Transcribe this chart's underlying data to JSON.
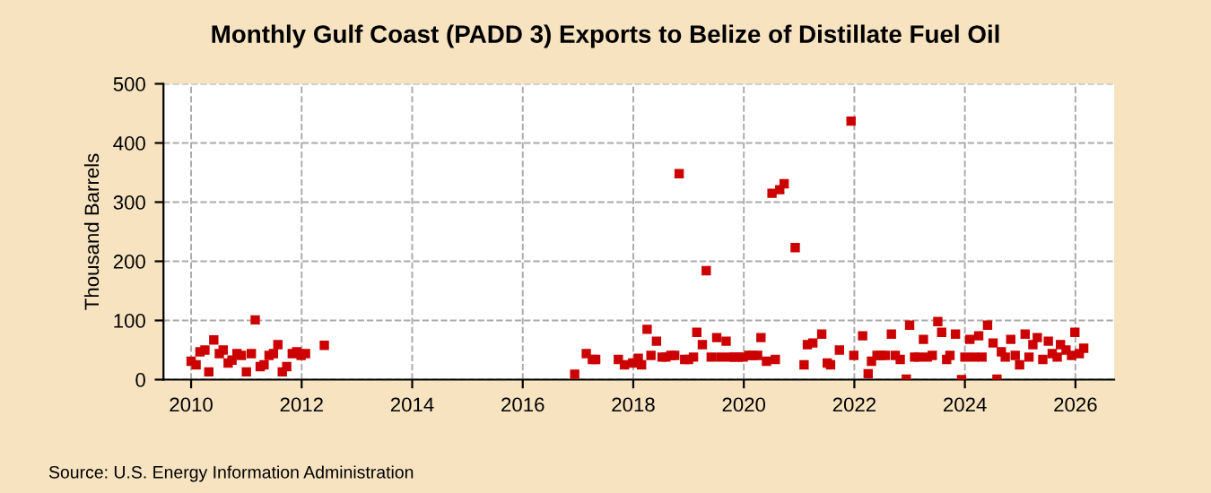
{
  "chart_data": {
    "type": "scatter",
    "title": "Monthly Gulf Coast (PADD 3) Exports to Belize of Distillate Fuel Oil",
    "ylabel": "Thousand Barrels",
    "annotations": [
      "Source: U.S. Energy Information Administration"
    ],
    "x": [
      2010.0,
      2010.09,
      2010.16,
      2010.25,
      2010.32,
      2010.41,
      2010.51,
      2010.58,
      2010.67,
      2010.74,
      2010.83,
      2010.91,
      2011.0,
      2011.09,
      2011.16,
      2011.25,
      2011.32,
      2011.41,
      2011.49,
      2011.57,
      2011.65,
      2011.73,
      2011.83,
      2011.91,
      2011.99,
      2012.07,
      2012.41,
      2016.94,
      2017.15,
      2017.26,
      2017.32,
      2017.73,
      2017.84,
      2017.99,
      2018.09,
      2018.15,
      2018.25,
      2018.32,
      2018.42,
      2018.52,
      2018.59,
      2018.68,
      2018.75,
      2018.83,
      2018.93,
      2019.0,
      2019.09,
      2019.15,
      2019.25,
      2019.32,
      2019.41,
      2019.51,
      2019.58,
      2019.68,
      2019.74,
      2019.83,
      2019.9,
      2019.99,
      2020.09,
      2020.16,
      2020.25,
      2020.31,
      2020.41,
      2020.51,
      2020.57,
      2020.65,
      2020.73,
      2020.93,
      2021.09,
      2021.15,
      2021.25,
      2021.41,
      2021.51,
      2021.57,
      2021.73,
      2021.94,
      2021.99,
      2022.15,
      2022.25,
      2022.31,
      2022.41,
      2022.48,
      2022.56,
      2022.67,
      2022.74,
      2022.83,
      2022.94,
      2023.0,
      2023.09,
      2023.16,
      2023.25,
      2023.32,
      2023.41,
      2023.51,
      2023.58,
      2023.67,
      2023.73,
      2023.83,
      2023.94,
      2024.0,
      2024.09,
      2024.16,
      2024.25,
      2024.31,
      2024.41,
      2024.51,
      2024.58,
      2024.66,
      2024.73,
      2024.83,
      2024.91,
      2024.99,
      2025.09,
      2025.16,
      2025.23,
      2025.31,
      2025.41,
      2025.51,
      2025.58,
      2025.67,
      2025.73,
      2025.83,
      2025.93,
      2025.99,
      2026.07,
      2026.15
    ],
    "series": [
      {
        "color": "#cc0000",
        "values": [
          31,
          25,
          47,
          50,
          13,
          67,
          44,
          50,
          28,
          33,
          44,
          41,
          13,
          44,
          101,
          22,
          25,
          41,
          44,
          59,
          13,
          22,
          44,
          47,
          41,
          44,
          58,
          9,
          44,
          34,
          34,
          34,
          25,
          28,
          36,
          25,
          85,
          41,
          65,
          38,
          38,
          41,
          41,
          348,
          34,
          34,
          38,
          80,
          59,
          184,
          38,
          71,
          38,
          65,
          38,
          38,
          38,
          38,
          41,
          41,
          41,
          71,
          31,
          315,
          34,
          321,
          331,
          223,
          25,
          59,
          62,
          77,
          28,
          25,
          50,
          437,
          41,
          74,
          10,
          31,
          41,
          41,
          41,
          77,
          41,
          34,
          1,
          92,
          38,
          38,
          68,
          38,
          41,
          98,
          80,
          34,
          41,
          77,
          0,
          38,
          68,
          38,
          74,
          38,
          92,
          62,
          1,
          47,
          38,
          68,
          41,
          25,
          77,
          38,
          59,
          71,
          34,
          65,
          44,
          38,
          59,
          50,
          41,
          80,
          44,
          53
        ]
      }
    ],
    "xlim": [
      2009.5,
      2026.7
    ],
    "xticks": [
      2010,
      2012,
      2014,
      2016,
      2018,
      2020,
      2022,
      2024,
      2026
    ],
    "ylim": [
      0,
      500
    ],
    "yticks": [
      0,
      100,
      200,
      300,
      400,
      500
    ],
    "grid": true,
    "marker": "square"
  }
}
